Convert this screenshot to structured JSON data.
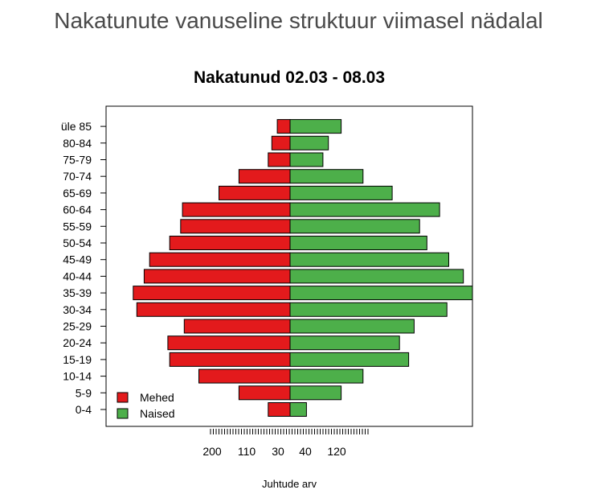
{
  "page_title": "Nakatunute vanuseline struktuur viimasel nädalal",
  "chart_data": {
    "type": "bar",
    "orientation": "horizontal",
    "title": "Nakatunud 02.03 - 08.03",
    "xlabel": "Juhtude arv",
    "ylabel": "",
    "categories": [
      "0-4",
      "5-9",
      "10-14",
      "15-19",
      "20-24",
      "25-29",
      "30-34",
      "35-39",
      "40-44",
      "45-49",
      "50-54",
      "55-59",
      "60-64",
      "65-69",
      "70-74",
      "75-79",
      "80-84",
      "üle 85"
    ],
    "series": [
      {
        "name": "Mehed",
        "color": "#e31a1c",
        "values": [
          12,
          28,
          50,
          66,
          67,
          58,
          84,
          86,
          80,
          77,
          66,
          60,
          59,
          39,
          28,
          12,
          10,
          7
        ]
      },
      {
        "name": "Naised",
        "color": "#4daf4a",
        "values": [
          9,
          28,
          40,
          65,
          60,
          68,
          86,
          100,
          95,
          87,
          75,
          71,
          82,
          56,
          40,
          18,
          21,
          28
        ]
      }
    ],
    "x_tick_labels": [
      "200",
      "110",
      "30",
      "40",
      "120"
    ],
    "legend": {
      "position": "bottom-left",
      "entries": [
        "Mehed",
        "Naised"
      ]
    },
    "grid": false
  }
}
